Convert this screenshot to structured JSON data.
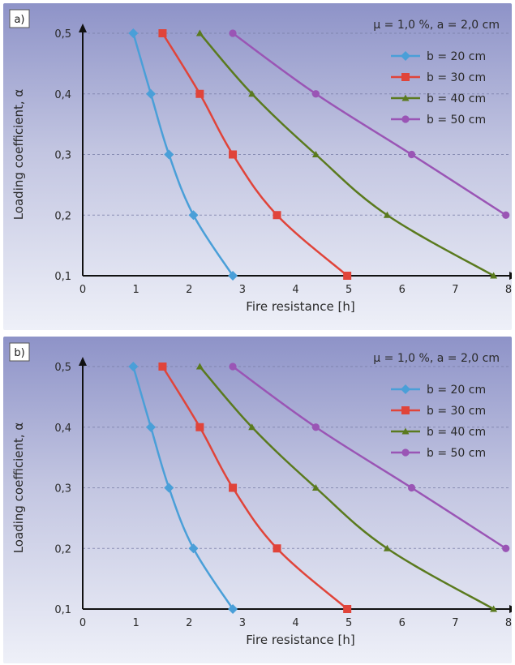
{
  "chart_data": [
    {
      "type": "line",
      "panel_label": "a)",
      "annotation": "μ = 1,0 %, a = 2,0 cm",
      "xlabel": "Fire resistance [h]",
      "ylabel": "Loading coefficient, α",
      "xlim": [
        0,
        8
      ],
      "ylim": [
        0.1,
        0.5
      ],
      "x_ticks": [
        "0",
        "1",
        "2",
        "3",
        "4",
        "5",
        "6",
        "7",
        "8"
      ],
      "y_ticks": [
        "0,1",
        "0,2",
        "0,3",
        "0,4",
        "0,5"
      ],
      "grid": "dashed horizontal",
      "legend_position": "top-right",
      "series": [
        {
          "name": "b = 20 cm",
          "color": "#4a9fd8",
          "marker": "diamond",
          "x": [
            0.95,
            1.28,
            1.62,
            2.08,
            2.82
          ],
          "y": [
            0.5,
            0.4,
            0.3,
            0.2,
            0.1
          ]
        },
        {
          "name": "b = 30 cm",
          "color": "#e0443a",
          "marker": "square",
          "x": [
            1.5,
            2.2,
            2.82,
            3.65,
            4.97
          ],
          "y": [
            0.5,
            0.4,
            0.3,
            0.2,
            0.1
          ]
        },
        {
          "name": "b = 40 cm",
          "color": "#5a7a1e",
          "marker": "triangle",
          "x": [
            2.2,
            3.18,
            4.38,
            5.72,
            7.72
          ],
          "y": [
            0.5,
            0.4,
            0.3,
            0.2,
            0.1
          ]
        },
        {
          "name": "b = 50 cm",
          "color": "#9a55b5",
          "marker": "circle",
          "x": [
            2.82,
            4.38,
            6.18,
            7.95
          ],
          "y": [
            0.5,
            0.4,
            0.3,
            0.2
          ]
        }
      ]
    },
    {
      "type": "line",
      "panel_label": "b)",
      "annotation": "μ = 1,0 %, a = 2,0 cm",
      "xlabel": "Fire resistance [h]",
      "ylabel": "Loading coefficient, α",
      "xlim": [
        0,
        8
      ],
      "ylim": [
        0.1,
        0.5
      ],
      "x_ticks": [
        "0",
        "1",
        "2",
        "3",
        "4",
        "5",
        "6",
        "7",
        "8"
      ],
      "y_ticks": [
        "0,1",
        "0,2",
        "0,3",
        "0,4",
        "0,5"
      ],
      "grid": "dashed horizontal",
      "legend_position": "top-right",
      "series": [
        {
          "name": "b = 20 cm",
          "color": "#4a9fd8",
          "marker": "diamond",
          "x": [
            0.95,
            1.28,
            1.62,
            2.08,
            2.82
          ],
          "y": [
            0.5,
            0.4,
            0.3,
            0.2,
            0.1
          ]
        },
        {
          "name": "b = 30 cm",
          "color": "#e0443a",
          "marker": "square",
          "x": [
            1.5,
            2.2,
            2.82,
            3.65,
            4.97
          ],
          "y": [
            0.5,
            0.4,
            0.3,
            0.2,
            0.1
          ]
        },
        {
          "name": "b = 40 cm",
          "color": "#5a7a1e",
          "marker": "triangle",
          "x": [
            2.2,
            3.18,
            4.38,
            5.72,
            7.72
          ],
          "y": [
            0.5,
            0.4,
            0.3,
            0.2,
            0.1
          ]
        },
        {
          "name": "b = 50 cm",
          "color": "#9a55b5",
          "marker": "circle",
          "x": [
            2.82,
            4.38,
            6.18,
            7.95
          ],
          "y": [
            0.5,
            0.4,
            0.3,
            0.2
          ]
        }
      ]
    }
  ]
}
